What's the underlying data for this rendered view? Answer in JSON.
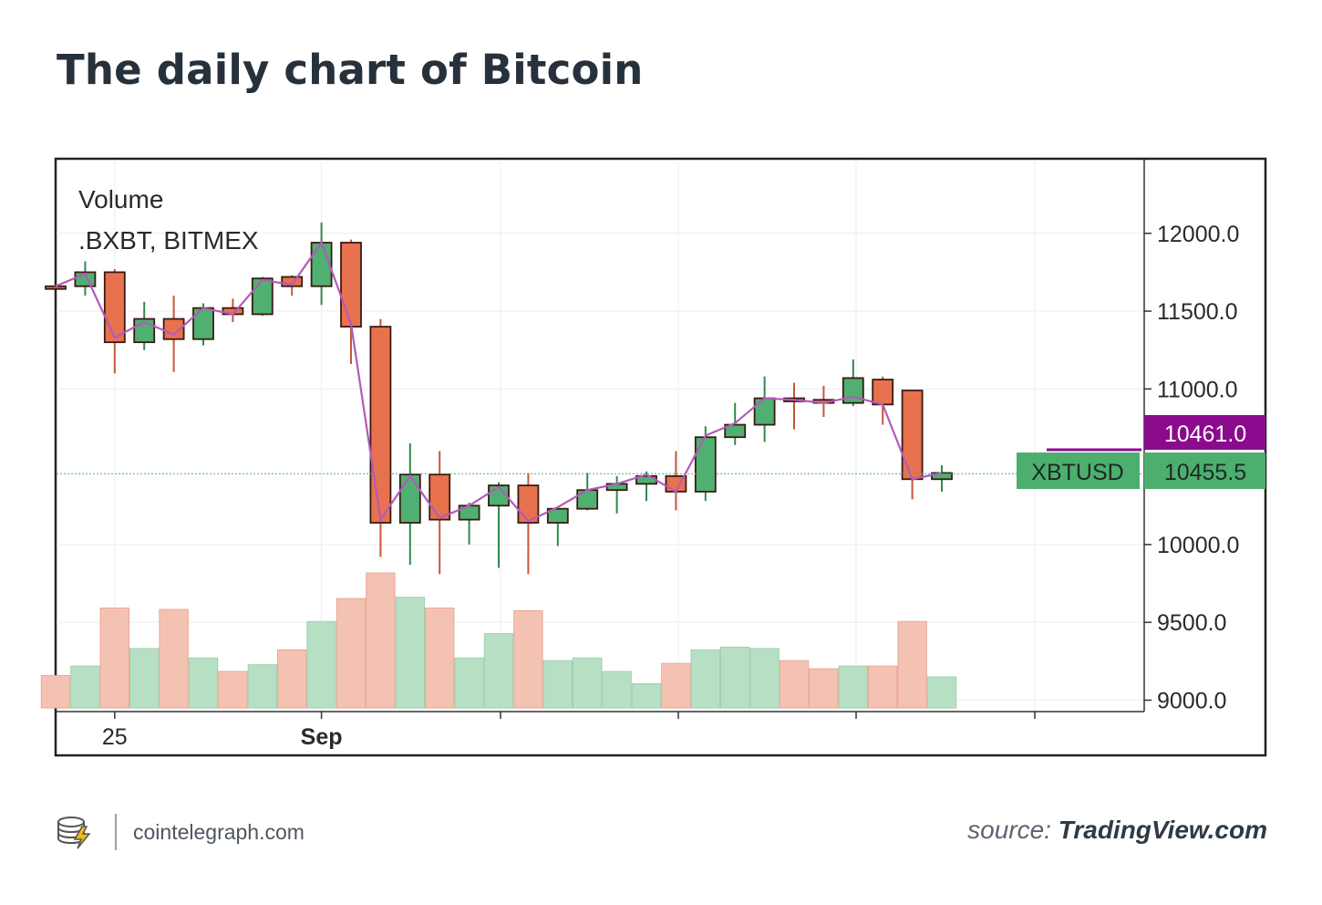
{
  "page": {
    "title": "The daily chart of Bitcoin",
    "brand": "cointelegraph.com",
    "source_prefix": "source:",
    "source_name": "TradingView.com"
  },
  "colors": {
    "up": "#4fb071",
    "down": "#e8714e",
    "up_volume": "#b6dfc4",
    "down_volume": "#f4c2b3",
    "ma_line": "#b35ab8",
    "price_tag_purple": "#8b0a8e",
    "price_tag_green": "#4caf6e"
  },
  "chart_data": {
    "type": "candlestick",
    "legend": {
      "line1": "Volume",
      "line2": ".BXBT, BITMEX"
    },
    "y_ticks": [
      "12000.0",
      "11500.0",
      "11000.0",
      "10000.0",
      "9500.0",
      "9000.0"
    ],
    "y_tick_values": [
      12000,
      11500,
      11000,
      10000,
      9500,
      9000
    ],
    "x_labels": [
      {
        "label": "25",
        "index": 2,
        "bold": false
      },
      {
        "label": "Sep",
        "index": 9,
        "bold": true
      }
    ],
    "price_tags": [
      {
        "label": "10461.0",
        "value": 10461,
        "color": "purple"
      },
      {
        "label": "10455.5",
        "value": 10455.5,
        "color": "green"
      }
    ],
    "symbol_tag": "XBTUSD",
    "ylim": [
      8950,
      12450
    ],
    "candles": [
      {
        "o": 11660,
        "h": 11670,
        "l": 11640,
        "c": 11650
      },
      {
        "o": 11660,
        "h": 11820,
        "l": 11600,
        "c": 11750
      },
      {
        "o": 11750,
        "h": 11770,
        "l": 11100,
        "c": 11300
      },
      {
        "o": 11300,
        "h": 11560,
        "l": 11250,
        "c": 11450
      },
      {
        "o": 11450,
        "h": 11600,
        "l": 11110,
        "c": 11320
      },
      {
        "o": 11320,
        "h": 11550,
        "l": 11280,
        "c": 11520
      },
      {
        "o": 11520,
        "h": 11580,
        "l": 11430,
        "c": 11480
      },
      {
        "o": 11480,
        "h": 11720,
        "l": 11470,
        "c": 11710
      },
      {
        "o": 11720,
        "h": 11730,
        "l": 11600,
        "c": 11660
      },
      {
        "o": 11660,
        "h": 12070,
        "l": 11540,
        "c": 11940
      },
      {
        "o": 11940,
        "h": 11960,
        "l": 11160,
        "c": 11400
      },
      {
        "o": 11400,
        "h": 11450,
        "l": 9920,
        "c": 10140
      },
      {
        "o": 10140,
        "h": 10650,
        "l": 9870,
        "c": 10450
      },
      {
        "o": 10450,
        "h": 10600,
        "l": 9810,
        "c": 10160
      },
      {
        "o": 10160,
        "h": 10270,
        "l": 10000,
        "c": 10250
      },
      {
        "o": 10250,
        "h": 10400,
        "l": 9850,
        "c": 10380
      },
      {
        "o": 10380,
        "h": 10460,
        "l": 9810,
        "c": 10140
      },
      {
        "o": 10140,
        "h": 10240,
        "l": 9990,
        "c": 10230
      },
      {
        "o": 10230,
        "h": 10460,
        "l": 10220,
        "c": 10350
      },
      {
        "o": 10350,
        "h": 10440,
        "l": 10200,
        "c": 10390
      },
      {
        "o": 10390,
        "h": 10470,
        "l": 10280,
        "c": 10440
      },
      {
        "o": 10440,
        "h": 10600,
        "l": 10220,
        "c": 10340
      },
      {
        "o": 10340,
        "h": 10760,
        "l": 10280,
        "c": 10690
      },
      {
        "o": 10690,
        "h": 10910,
        "l": 10640,
        "c": 10770
      },
      {
        "o": 10770,
        "h": 11080,
        "l": 10660,
        "c": 10940
      },
      {
        "o": 10940,
        "h": 11040,
        "l": 10740,
        "c": 10920
      },
      {
        "o": 10930,
        "h": 11020,
        "l": 10820,
        "c": 10910
      },
      {
        "o": 10910,
        "h": 11190,
        "l": 10890,
        "c": 11070
      },
      {
        "o": 11060,
        "h": 11080,
        "l": 10770,
        "c": 10900
      },
      {
        "o": 10990,
        "h": 10970,
        "l": 10290,
        "c": 10420
      },
      {
        "o": 10420,
        "h": 10510,
        "l": 10340,
        "c": 10460
      }
    ],
    "volumes": [
      0.24,
      0.31,
      0.74,
      0.44,
      0.73,
      0.37,
      0.27,
      0.32,
      0.43,
      0.64,
      0.81,
      1.0,
      0.82,
      0.74,
      0.37,
      0.55,
      0.72,
      0.35,
      0.37,
      0.27,
      0.18,
      0.33,
      0.43,
      0.45,
      0.44,
      0.35,
      0.29,
      0.31,
      0.31,
      0.64,
      0.23
    ],
    "ma_line": [
      11660,
      11740,
      11330,
      11430,
      11350,
      11520,
      11480,
      11700,
      11670,
      11940,
      11420,
      10160,
      10440,
      10170,
      10250,
      10370,
      10150,
      10240,
      10350,
      10390,
      10450,
      10340,
      10700,
      10780,
      10940,
      10930,
      10910,
      10950,
      10900,
      10420,
      10460
    ]
  }
}
